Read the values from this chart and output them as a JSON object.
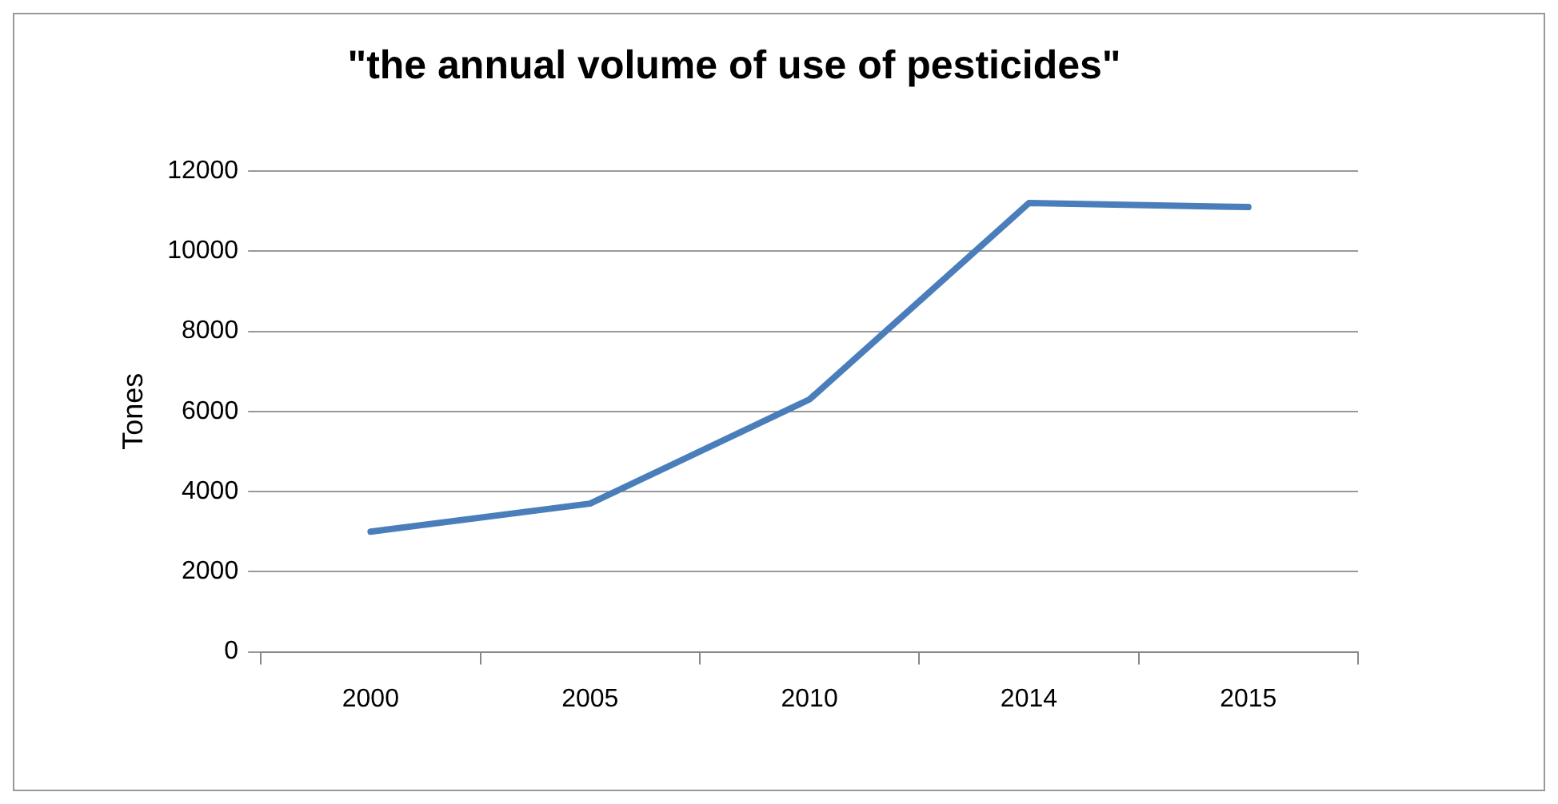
{
  "chart_data": {
    "type": "line",
    "title": "\"the annual volume of use of pesticides\"",
    "ylabel": "Tones",
    "categories": [
      "2000",
      "2005",
      "2010",
      "2014",
      "2015"
    ],
    "series": [
      {
        "color": "#4a7ebb",
        "values": [
          3000,
          3700,
          6300,
          11200,
          11100
        ]
      }
    ],
    "ylim": [
      0,
      12000
    ],
    "yticks": [
      0,
      2000,
      4000,
      6000,
      8000,
      10000,
      12000
    ],
    "grid": "y",
    "legend": false,
    "marker": "none",
    "line_style": "solid"
  }
}
